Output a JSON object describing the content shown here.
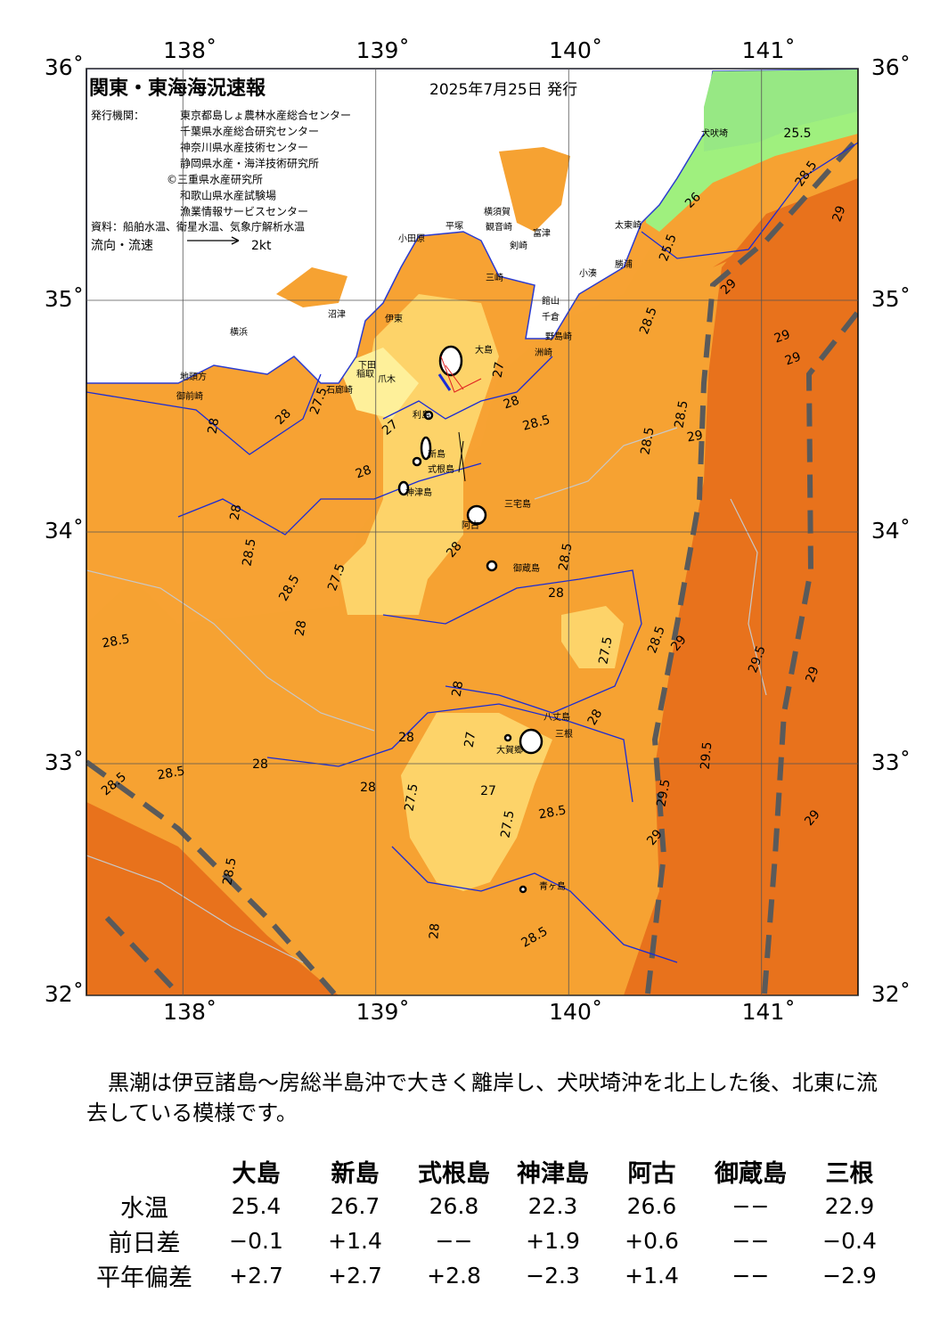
{
  "header": {
    "title": "関東・東海海況速報",
    "date": "2025年7月25日 発行",
    "issuer_label": "発行機関：",
    "issuers": [
      "東京都島しょ農林水産総合センター",
      "千葉県水産総合研究センター",
      "神奈川県水産技術センター",
      "静岡県水産・海洋技術研究所",
      "©三重県水産研究所",
      "和歌山県水産試験場",
      "漁業情報サービスセンター"
    ],
    "sources": "資料：船舶水温、衛星水温、気象庁解析水温",
    "flow_label": "流向・流速",
    "flow_scale": "2kt"
  },
  "map": {
    "lon_ticks": [
      {
        "value": 138,
        "label": "138˚"
      },
      {
        "value": 139,
        "label": "139˚"
      },
      {
        "value": 140,
        "label": "140˚"
      },
      {
        "value": 141,
        "label": "141˚"
      }
    ],
    "lat_ticks": [
      {
        "value": 36,
        "label": "36˚"
      },
      {
        "value": 35,
        "label": "35˚"
      },
      {
        "value": 34,
        "label": "34˚"
      },
      {
        "value": 33,
        "label": "33˚"
      },
      {
        "value": 32,
        "label": "32˚"
      }
    ],
    "lon_range": [
      137.5,
      141.5
    ],
    "lat_range": [
      32,
      36
    ],
    "places": [
      "犬吠埼",
      "太東崎",
      "勝浦",
      "小湊",
      "館山",
      "千倉",
      "野島崎",
      "洲崎",
      "富津",
      "観音崎",
      "横須賀",
      "平塚",
      "小田原",
      "剣崎",
      "三崎",
      "沼津",
      "伊東",
      "横浜",
      "地頭方",
      "御前崎",
      "稲取",
      "下田",
      "爪木",
      "石廊崎",
      "大島",
      "利島",
      "新島",
      "式根島",
      "神津島",
      "三宅島",
      "阿古",
      "御蔵島",
      "八丈島",
      "三根",
      "大賀郷",
      "青ヶ島"
    ],
    "contours": [
      25.5,
      28.5,
      29,
      26,
      25.5,
      28.5,
      29,
      29,
      29,
      28.5,
      29,
      28.5,
      28,
      28.5,
      27,
      27,
      28,
      27.5,
      28,
      28,
      28,
      28.5,
      27.5,
      28.5,
      28,
      28.5,
      28.5,
      28,
      27.5,
      28.5,
      29,
      29.5,
      29,
      28,
      28,
      28,
      27,
      28,
      28.5,
      28.5,
      28,
      29.5,
      27,
      27.5,
      28.5,
      27.5,
      29.5,
      29,
      29,
      28.5,
      28,
      28.5,
      28
    ]
  },
  "description": "　黒潮は伊豆諸島～房総半島沖で大きく離岸し、犬吠埼沖を北上した後、北東に流去している模様です。",
  "table": {
    "columns": [
      "大島",
      "新島",
      "式根島",
      "神津島",
      "阿古",
      "御蔵島",
      "三根"
    ],
    "rows": [
      {
        "label": "水温",
        "cells": [
          "25.4",
          "26.7",
          "26.8",
          "22.3",
          "26.6",
          "−−",
          "22.9"
        ]
      },
      {
        "label": "前日差",
        "cells": [
          "−0.1",
          "+1.4",
          "−−",
          "+1.9",
          "+0.6",
          "−−",
          "−0.4"
        ]
      },
      {
        "label": "平年偏差",
        "cells": [
          "+2.7",
          "+2.7",
          "+2.8",
          "−2.3",
          "+1.4",
          "−−",
          "−2.9"
        ]
      }
    ]
  }
}
